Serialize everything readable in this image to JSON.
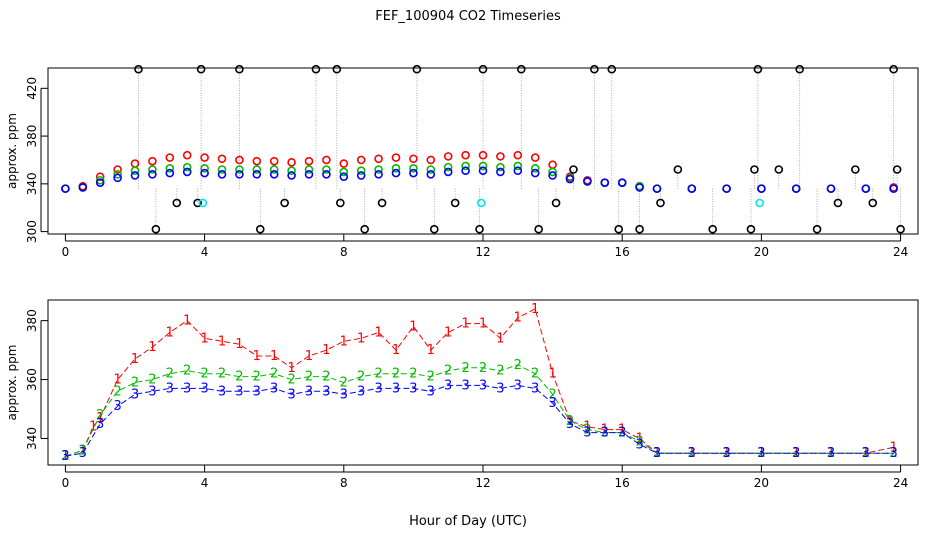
{
  "figure": {
    "title": "FEF_100904  CO2 Timeseries",
    "xlabel": "Hour of Day (UTC)"
  },
  "chart_data": [
    {
      "type": "scatter",
      "ylabel": "approx. ppm",
      "xlim": [
        -0.5,
        24.5
      ],
      "ylim": [
        298,
        437
      ],
      "xticks": [
        0,
        4,
        8,
        12,
        16,
        20,
        24
      ],
      "yticks": [
        300,
        340,
        380,
        420
      ],
      "grid": false,
      "marker": "open-circle",
      "series": [
        {
          "color": "#ff0000",
          "x": [
            0,
            0.5,
            1,
            1.5,
            2,
            2.5,
            3,
            3.5,
            4,
            4.5,
            5,
            5.5,
            6,
            6.5,
            7,
            7.5,
            8,
            8.5,
            9,
            9.5,
            10,
            10.5,
            11,
            11.5,
            12,
            12.5,
            13,
            13.5,
            14,
            14.5,
            15,
            15.5,
            16,
            16.5,
            17,
            18,
            19,
            20,
            21,
            22,
            23,
            23.8
          ],
          "y": [
            336,
            338,
            346,
            352,
            357,
            359,
            362,
            364,
            362,
            361,
            360,
            359,
            359,
            358,
            359,
            360,
            357,
            360,
            361,
            362,
            361,
            360,
            363,
            364,
            364,
            363,
            364,
            362,
            356,
            346,
            343,
            341,
            341,
            338,
            336,
            336,
            336,
            336,
            336,
            336,
            336,
            337
          ]
        },
        {
          "color": "#00bb00",
          "x": [
            0,
            0.5,
            1,
            1.5,
            2,
            2.5,
            3,
            3.5,
            4,
            4.5,
            5,
            5.5,
            6,
            6.5,
            7,
            7.5,
            8,
            8.5,
            9,
            9.5,
            10,
            10.5,
            11,
            11.5,
            12,
            12.5,
            13,
            13.5,
            14,
            14.5,
            15,
            15.5,
            16,
            16.5,
            17,
            18,
            19,
            20,
            21,
            22,
            23,
            23.8
          ],
          "y": [
            336,
            337,
            343,
            348,
            351,
            352,
            353,
            354,
            353,
            352,
            352,
            352,
            352,
            351,
            352,
            352,
            350,
            351,
            352,
            353,
            353,
            352,
            354,
            355,
            355,
            354,
            355,
            353,
            350,
            345,
            342,
            341,
            341,
            338,
            336,
            336,
            336,
            336,
            336,
            336,
            336,
            336
          ]
        },
        {
          "color": "#0000ff",
          "x": [
            0,
            0.5,
            1,
            1.5,
            2,
            2.5,
            3,
            3.5,
            4,
            4.5,
            5,
            5.5,
            6,
            6.5,
            7,
            7.5,
            8,
            8.5,
            9,
            9.5,
            10,
            10.5,
            11,
            11.5,
            12,
            12.5,
            13,
            13.5,
            14,
            14.5,
            15,
            15.5,
            16,
            16.5,
            17,
            18,
            19,
            20,
            21,
            22,
            23,
            23.8
          ],
          "y": [
            336,
            337,
            341,
            345,
            347,
            348,
            349,
            350,
            349,
            348,
            348,
            348,
            348,
            347,
            348,
            348,
            346,
            347,
            348,
            349,
            349,
            348,
            350,
            351,
            351,
            350,
            351,
            349,
            347,
            344,
            342,
            341,
            341,
            337,
            336,
            336,
            336,
            336,
            336,
            336,
            336,
            336
          ]
        },
        {
          "color": "#000000",
          "x": [
            2.1,
            2.6,
            3.2,
            3.8,
            3.9,
            5.0,
            5.6,
            6.3,
            7.2,
            7.8,
            7.9,
            8.6,
            9.1,
            10.1,
            10.6,
            11.2,
            11.9,
            12.0,
            13.1,
            13.6,
            14.1,
            14.6,
            15.2,
            15.7,
            15.9,
            16.5,
            17.1,
            17.6,
            18.6,
            19.7,
            19.8,
            19.9,
            20.5,
            21.1,
            21.6,
            22.2,
            22.7,
            23.2,
            23.8,
            23.9,
            24.0
          ],
          "y": [
            436,
            302,
            324,
            324,
            436,
            436,
            302,
            324,
            436,
            436,
            324,
            302,
            324,
            436,
            302,
            324,
            302,
            436,
            436,
            302,
            324,
            352,
            436,
            436,
            302,
            302,
            324,
            352,
            302,
            302,
            352,
            436,
            352,
            436,
            302,
            324,
            352,
            324,
            436,
            352,
            302
          ]
        },
        {
          "color": "#00e5ee",
          "x": [
            3.95,
            11.95,
            19.95
          ],
          "y": [
            324,
            324,
            324
          ]
        }
      ]
    },
    {
      "type": "line",
      "ylabel": "approx. ppm",
      "xlim": [
        -0.5,
        24.5
      ],
      "ylim": [
        331,
        387
      ],
      "xticks": [
        0,
        4,
        8,
        12,
        16,
        20,
        24
      ],
      "yticks": [
        340,
        360,
        380
      ],
      "grid": false,
      "marker": "numbered",
      "series": [
        {
          "label": "1",
          "color": "#ff0000",
          "x": [
            0,
            0.5,
            0.8,
            1,
            1.5,
            2,
            2.5,
            3,
            3.5,
            4,
            4.5,
            5,
            5.5,
            6,
            6.5,
            7,
            7.5,
            8,
            8.5,
            9,
            9.5,
            10,
            10.5,
            11,
            11.5,
            12,
            12.5,
            13,
            13.5,
            14,
            14.5,
            15,
            15.5,
            16,
            16.5,
            17,
            18,
            19,
            20,
            21,
            22,
            23,
            23.8
          ],
          "y": [
            334,
            336,
            344,
            347,
            360,
            367,
            371,
            376,
            380,
            374,
            373,
            372,
            368,
            368,
            364,
            368,
            370,
            373,
            374,
            376,
            370,
            378,
            370,
            376,
            379,
            379,
            374,
            381,
            384,
            362,
            346,
            344,
            343,
            343,
            340,
            335,
            335,
            335,
            335,
            335,
            335,
            335,
            337
          ]
        },
        {
          "label": "2",
          "color": "#00bb00",
          "x": [
            0,
            0.5,
            1,
            1.5,
            2,
            2.5,
            3,
            3.5,
            4,
            4.5,
            5,
            5.5,
            6,
            6.5,
            7,
            7.5,
            8,
            8.5,
            9,
            9.5,
            10,
            10.5,
            11,
            11.5,
            12,
            12.5,
            13,
            13.5,
            14,
            14.5,
            15,
            15.5,
            16,
            16.5,
            17,
            18,
            19,
            20,
            21,
            22,
            23,
            23.8
          ],
          "y": [
            334,
            336,
            348,
            356,
            359,
            360,
            362,
            363,
            362,
            362,
            361,
            361,
            362,
            360,
            361,
            361,
            359,
            361,
            362,
            362,
            362,
            361,
            363,
            364,
            364,
            363,
            365,
            362,
            355,
            346,
            343,
            342,
            342,
            339,
            335,
            335,
            335,
            335,
            335,
            335,
            335,
            335
          ]
        },
        {
          "label": "3",
          "color": "#0000ff",
          "x": [
            0,
            0.5,
            1,
            1.5,
            2,
            2.5,
            3,
            3.5,
            4,
            4.5,
            5,
            5.5,
            6,
            6.5,
            7,
            7.5,
            8,
            8.5,
            9,
            9.5,
            10,
            10.5,
            11,
            11.5,
            12,
            12.5,
            13,
            13.5,
            14,
            14.5,
            15,
            15.5,
            16,
            16.5,
            17,
            18,
            19,
            20,
            21,
            22,
            23,
            23.8
          ],
          "y": [
            334,
            335,
            345,
            351,
            355,
            356,
            357,
            357,
            357,
            356,
            356,
            356,
            357,
            355,
            356,
            356,
            355,
            356,
            357,
            357,
            357,
            356,
            358,
            358,
            358,
            357,
            358,
            357,
            352,
            345,
            342,
            342,
            342,
            338,
            335,
            335,
            335,
            335,
            335,
            335,
            335,
            335
          ]
        }
      ]
    }
  ]
}
